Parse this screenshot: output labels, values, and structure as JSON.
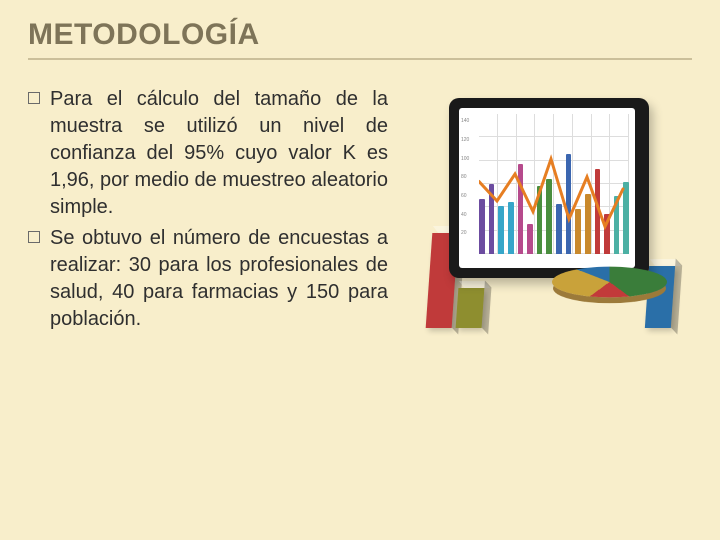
{
  "title": "METODOLOGÍA",
  "bullets": [
    "Para el cálculo del tamaño de la muestra se utilizó un nivel de confianza del 95% cuyo valor K es 1,96, por medio de muestreo aleatorio simple.",
    "Se obtuvo el número de encuestas a realizar: 30 para los profesionales de salud, 40 para farmacias y 150 para población."
  ],
  "colors": {
    "background": "#f8eecb",
    "title": "#7e7458",
    "rule": "#cbbf9a",
    "body_text": "#2f2f2f",
    "bullet_border": "#6a6a6a"
  },
  "chart_visual": {
    "tablet_chart": {
      "type": "bar+line",
      "bars": {
        "values": [
          55,
          70,
          48,
          52,
          90,
          30,
          68,
          75,
          50,
          100,
          45,
          60,
          85,
          40,
          58,
          72
        ],
        "colors": [
          "#6c4ca0",
          "#6c4ca0",
          "#36a6c9",
          "#36a6c9",
          "#b64a8c",
          "#b64a8c",
          "#4a8e3e",
          "#4a8e3e",
          "#3b66b0",
          "#3b66b0",
          "#c9892c",
          "#c9892c",
          "#c03a3a",
          "#c03a3a",
          "#4cb0a4",
          "#4cb0a4"
        ]
      },
      "line": {
        "points_pct": [
          [
            0,
            55
          ],
          [
            12,
            42
          ],
          [
            24,
            60
          ],
          [
            36,
            35
          ],
          [
            48,
            70
          ],
          [
            60,
            30
          ],
          [
            72,
            58
          ],
          [
            84,
            25
          ],
          [
            96,
            50
          ]
        ],
        "color": "#e67e22",
        "width": 2
      },
      "ylim": [
        0,
        140
      ],
      "yticks": [
        20,
        40,
        60,
        80,
        100,
        120,
        140
      ],
      "grid_color": "#dddddd",
      "background": "#ffffff"
    },
    "pie": {
      "type": "pie",
      "slices": [
        {
          "value": 40,
          "color": "#3a7d3a"
        },
        {
          "value": 20,
          "color": "#c23a3a"
        },
        {
          "value": 25,
          "color": "#c9a23a"
        },
        {
          "value": 15,
          "color": "#2a6fa8"
        }
      ]
    },
    "standalone_bars": {
      "type": "bar",
      "items": [
        {
          "h": 95,
          "x": 12,
          "color": "#c03a3a"
        },
        {
          "h": 62,
          "x": 230,
          "color": "#2a6fa8"
        },
        {
          "h": 40,
          "x": 40,
          "color": "#8e8e2f"
        }
      ],
      "baseline_y": 230
    }
  }
}
